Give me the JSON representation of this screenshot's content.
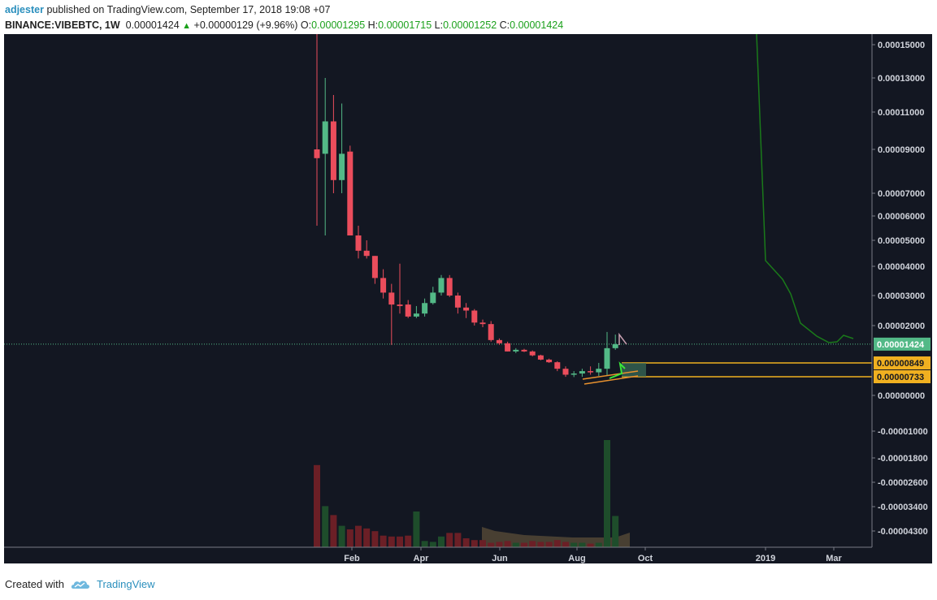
{
  "header": {
    "author": "adjester",
    "published": "published on TradingView.com, September 17, 2018 19:08 +07",
    "symbol": "BINANCE:VIBEBTC, 1W",
    "last": "0.00001424",
    "change": "+0.00000129 (+9.96%)",
    "o_label": "O:",
    "o": "0.00001295",
    "h_label": "H:",
    "h": "0.00001715",
    "l_label": "L:",
    "l": "0.00001252",
    "c_label": "C:",
    "c": "0.00001424"
  },
  "footer": {
    "created_with": "Created with",
    "brand": "TradingView",
    "logo_icon": "tradingview-cloud-icon"
  },
  "colors": {
    "background": "#131722",
    "up": "#53b987",
    "down": "#eb4d5c",
    "volume_up": "#1e4d2b",
    "volume_down": "#6b1f26",
    "highlight": "#f0b020",
    "current": "#53b987",
    "trend_line": "#1a7a1a"
  },
  "chart_data": {
    "type": "candlestick",
    "interval": "1W",
    "price_scale": "log",
    "y_ticks": [
      "0.00015000",
      "0.00013000",
      "0.00011000",
      "0.00009000",
      "0.00007000",
      "0.00006000",
      "0.00005000",
      "0.00004000",
      "0.00003000",
      "0.00002000",
      "0.00000000",
      "-0.00001000",
      "-0.00001800",
      "-0.00002600",
      "-0.00003400",
      "-0.00004300"
    ],
    "x_ticks": [
      "Feb",
      "Apr",
      "Jun",
      "Aug",
      "Oct",
      "2019",
      "Mar"
    ],
    "price_labels": [
      {
        "value": "0.00001424",
        "kind": "current"
      },
      {
        "value": "0.00000849",
        "kind": "highlight"
      },
      {
        "value": "0.00000733",
        "kind": "highlight"
      }
    ],
    "horizontal_levels": [
      8.49e-06,
      7.33e-06
    ],
    "candles": [
      {
        "o": 9e-05,
        "h": 0.00016,
        "l": 5.6e-05,
        "c": 8.6e-05
      },
      {
        "o": 8.8e-05,
        "h": 0.00013,
        "l": 5.2e-05,
        "c": 0.000105
      },
      {
        "o": 0.000105,
        "h": 0.00012,
        "l": 7e-05,
        "c": 7.6e-05
      },
      {
        "o": 7.6e-05,
        "h": 0.000115,
        "l": 7e-05,
        "c": 8.8e-05
      },
      {
        "o": 8.9e-05,
        "h": 9.2e-05,
        "l": 5.2e-05,
        "c": 5.2e-05
      },
      {
        "o": 5.2e-05,
        "h": 5.6e-05,
        "l": 4.3e-05,
        "c": 4.6e-05
      },
      {
        "o": 4.6e-05,
        "h": 5e-05,
        "l": 4.3e-05,
        "c": 4.4e-05
      },
      {
        "o": 4.4e-05,
        "h": 4.4e-05,
        "l": 3.4e-05,
        "c": 3.6e-05
      },
      {
        "o": 3.6e-05,
        "h": 3.9e-05,
        "l": 2.9e-05,
        "c": 3.1e-05
      },
      {
        "o": 3.1e-05,
        "h": 3.4e-05,
        "l": 1.4e-05,
        "c": 2.7e-05
      },
      {
        "o": 2.7e-05,
        "h": 4.1e-05,
        "l": 2.4e-05,
        "c": 2.65e-05
      },
      {
        "o": 2.7e-05,
        "h": 2.85e-05,
        "l": 2.25e-05,
        "c": 2.3e-05
      },
      {
        "o": 2.3e-05,
        "h": 2.65e-05,
        "l": 2.25e-05,
        "c": 2.4e-05
      },
      {
        "o": 2.4e-05,
        "h": 2.9e-05,
        "l": 2.3e-05,
        "c": 2.75e-05
      },
      {
        "o": 2.75e-05,
        "h": 3.3e-05,
        "l": 2.7e-05,
        "c": 3.1e-05
      },
      {
        "o": 3.1e-05,
        "h": 3.7e-05,
        "l": 3e-05,
        "c": 3.6e-05
      },
      {
        "o": 3.6e-05,
        "h": 3.7e-05,
        "l": 2.95e-05,
        "c": 3e-05
      },
      {
        "o": 3e-05,
        "h": 3.1e-05,
        "l": 2.4e-05,
        "c": 2.6e-05
      },
      {
        "o": 2.6e-05,
        "h": 2.75e-05,
        "l": 2.25e-05,
        "c": 2.5e-05
      },
      {
        "o": 2.5e-05,
        "h": 2.55e-05,
        "l": 2e-05,
        "c": 2.1e-05
      },
      {
        "o": 2.1e-05,
        "h": 2.2e-05,
        "l": 1.95e-05,
        "c": 2.05e-05
      },
      {
        "o": 2.05e-05,
        "h": 2.15e-05,
        "l": 1.5e-05,
        "c": 1.55e-05
      },
      {
        "o": 1.55e-05,
        "h": 1.6e-05,
        "l": 1.4e-05,
        "c": 1.45e-05
      },
      {
        "o": 1.45e-05,
        "h": 1.5e-05,
        "l": 1.2e-05,
        "c": 1.2e-05
      },
      {
        "o": 1.2e-05,
        "h": 1.3e-05,
        "l": 1.15e-05,
        "c": 1.25e-05
      },
      {
        "o": 1.25e-05,
        "h": 1.28e-05,
        "l": 1.18e-05,
        "c": 1.2e-05
      },
      {
        "o": 1.2e-05,
        "h": 1.23e-05,
        "l": 1.05e-05,
        "c": 1.08e-05
      },
      {
        "o": 1.08e-05,
        "h": 1.1e-05,
        "l": 9.3e-06,
        "c": 9.5e-06
      },
      {
        "o": 9.5e-06,
        "h": 9.8e-06,
        "l": 8.5e-06,
        "c": 8.7e-06
      },
      {
        "o": 8.7e-06,
        "h": 9e-06,
        "l": 7.8e-06,
        "c": 8e-06
      },
      {
        "o": 8e-06,
        "h": 8.2e-06,
        "l": 7.3e-06,
        "c": 7.5e-06
      },
      {
        "o": 7.5e-06,
        "h": 7.8e-06,
        "l": 7.2e-06,
        "c": 7.6e-06
      },
      {
        "o": 7.6e-06,
        "h": 8e-06,
        "l": 7.3e-06,
        "c": 7.8e-06
      },
      {
        "o": 7.8e-06,
        "h": 8.2e-06,
        "l": 7.5e-06,
        "c": 7.7e-06
      },
      {
        "o": 7.7e-06,
        "h": 8.5e-06,
        "l": 7.4e-06,
        "c": 8e-06
      },
      {
        "o": 8e-06,
        "h": 1.8e-05,
        "l": 7.4e-06,
        "c": 1.3e-05
      },
      {
        "o": 1.3e-05,
        "h": 1.72e-05,
        "l": 1.25e-05,
        "c": 1.42e-05
      }
    ],
    "volume_scale_note": "relative",
    "volume": [
      0.92,
      0.46,
      0.36,
      0.24,
      0.2,
      0.24,
      0.21,
      0.18,
      0.13,
      0.12,
      0.12,
      0.13,
      0.4,
      0.07,
      0.06,
      0.12,
      0.16,
      0.16,
      0.1,
      0.08,
      0.08,
      0.05,
      0.06,
      0.07,
      0.05,
      0.05,
      0.07,
      0.06,
      0.06,
      0.08,
      0.06,
      0.05,
      0.05,
      0.04,
      0.05,
      1.2,
      0.35
    ]
  }
}
